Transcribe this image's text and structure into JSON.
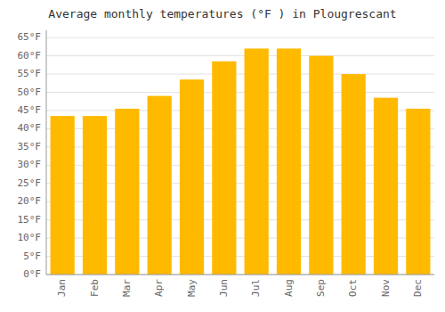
{
  "chart_data": {
    "type": "bar",
    "title": "Average monthly temperatures (°F ) in Plougrescant",
    "categories": [
      "Jan",
      "Feb",
      "Mar",
      "Apr",
      "May",
      "Jun",
      "Jul",
      "Aug",
      "Sep",
      "Oct",
      "Nov",
      "Dec"
    ],
    "values": [
      43.5,
      43.5,
      45.5,
      49,
      53.5,
      58.5,
      62,
      62,
      60,
      55,
      48.5,
      45.5
    ],
    "color": "#FFBA00",
    "ylim": [
      0,
      67
    ],
    "yticks": [
      {
        "value": 0,
        "label": "0°F"
      },
      {
        "value": 5,
        "label": "5°F"
      },
      {
        "value": 10,
        "label": "10°F"
      },
      {
        "value": 15,
        "label": "15°F"
      },
      {
        "value": 20,
        "label": "20°F"
      },
      {
        "value": 25,
        "label": "25°F"
      },
      {
        "value": 30,
        "label": "30°F"
      },
      {
        "value": 35,
        "label": "35°F"
      },
      {
        "value": 40,
        "label": "40°F"
      },
      {
        "value": 45,
        "label": "45°F"
      },
      {
        "value": 50,
        "label": "50°F"
      },
      {
        "value": 55,
        "label": "55°F"
      },
      {
        "value": 60,
        "label": "60°F"
      },
      {
        "value": 65,
        "label": "65°F"
      }
    ],
    "grid": true
  }
}
